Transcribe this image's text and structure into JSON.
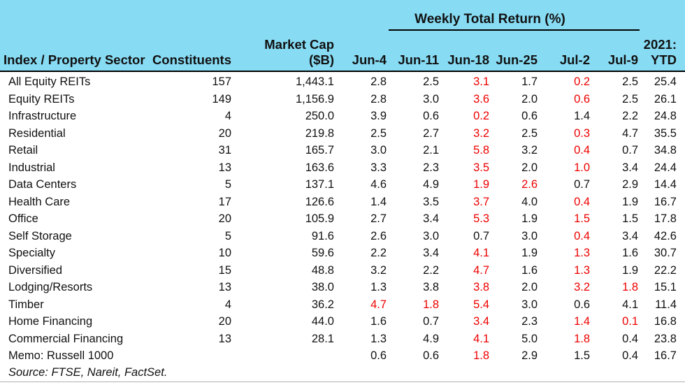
{
  "table": {
    "group_header": {
      "weekly_title": "Weekly Total Return (%)",
      "ytd_line1": "2021:",
      "ytd_line2": "YTD"
    },
    "columns": {
      "sector": "Index / Property Sector",
      "constituents": "Constituents",
      "market_cap_line1": "Market Cap",
      "market_cap_line2": "($B)",
      "weeks": [
        "Jun-4",
        "Jun-11",
        "Jun-18",
        "Jun-25",
        "Jul-2",
        "Jul-9"
      ]
    },
    "rows": [
      {
        "sector": "All Equity REITs",
        "constituents": "157",
        "market_cap": "1,443.1",
        "weekly": [
          "2.8",
          "2.5",
          "3.1",
          "1.7",
          "0.2",
          "2.5"
        ],
        "red_weeks": [
          2,
          4
        ],
        "ytd": "25.4"
      },
      {
        "sector": "Equity REITs",
        "constituents": "149",
        "market_cap": "1,156.9",
        "weekly": [
          "2.8",
          "3.0",
          "3.6",
          "2.0",
          "0.6",
          "2.5"
        ],
        "red_weeks": [
          2,
          4
        ],
        "ytd": "26.1"
      },
      {
        "sector": "Infrastructure",
        "constituents": "4",
        "market_cap": "250.0",
        "weekly": [
          "3.9",
          "0.6",
          "0.2",
          "0.6",
          "1.4",
          "2.2"
        ],
        "red_weeks": [
          2
        ],
        "ytd": "24.8"
      },
      {
        "sector": "Residential",
        "constituents": "20",
        "market_cap": "219.8",
        "weekly": [
          "2.5",
          "2.7",
          "3.2",
          "2.5",
          "0.3",
          "4.7"
        ],
        "red_weeks": [
          2,
          4
        ],
        "ytd": "35.5"
      },
      {
        "sector": "Retail",
        "constituents": "31",
        "market_cap": "165.7",
        "weekly": [
          "3.0",
          "2.1",
          "5.8",
          "3.2",
          "0.4",
          "0.7"
        ],
        "red_weeks": [
          2,
          4
        ],
        "ytd": "34.8"
      },
      {
        "sector": "Industrial",
        "constituents": "13",
        "market_cap": "163.6",
        "weekly": [
          "3.3",
          "2.3",
          "3.5",
          "2.0",
          "1.0",
          "3.4"
        ],
        "red_weeks": [
          2,
          4
        ],
        "ytd": "24.4"
      },
      {
        "sector": "Data Centers",
        "constituents": "5",
        "market_cap": "137.1",
        "weekly": [
          "4.6",
          "4.9",
          "1.9",
          "2.6",
          "0.7",
          "2.9"
        ],
        "red_weeks": [
          2,
          3
        ],
        "ytd": "14.4"
      },
      {
        "sector": "Health Care",
        "constituents": "17",
        "market_cap": "126.6",
        "weekly": [
          "1.4",
          "3.5",
          "3.7",
          "4.0",
          "0.4",
          "1.9"
        ],
        "red_weeks": [
          2,
          4
        ],
        "ytd": "16.7"
      },
      {
        "sector": "Office",
        "constituents": "20",
        "market_cap": "105.9",
        "weekly": [
          "2.7",
          "3.4",
          "5.3",
          "1.9",
          "1.5",
          "1.5"
        ],
        "red_weeks": [
          2,
          4
        ],
        "ytd": "17.8"
      },
      {
        "sector": "Self Storage",
        "constituents": "5",
        "market_cap": "91.6",
        "weekly": [
          "2.6",
          "3.0",
          "0.7",
          "3.0",
          "0.4",
          "3.4"
        ],
        "red_weeks": [
          4
        ],
        "ytd": "42.6"
      },
      {
        "sector": "Specialty",
        "constituents": "10",
        "market_cap": "59.6",
        "weekly": [
          "2.2",
          "3.4",
          "4.1",
          "1.9",
          "1.3",
          "1.6"
        ],
        "red_weeks": [
          2,
          4
        ],
        "ytd": "30.7"
      },
      {
        "sector": "Diversified",
        "constituents": "15",
        "market_cap": "48.8",
        "weekly": [
          "3.2",
          "2.2",
          "4.7",
          "1.6",
          "1.3",
          "1.9"
        ],
        "red_weeks": [
          2,
          4
        ],
        "ytd": "22.2"
      },
      {
        "sector": "Lodging/Resorts",
        "constituents": "13",
        "market_cap": "38.0",
        "weekly": [
          "1.3",
          "3.8",
          "3.8",
          "2.0",
          "3.2",
          "1.8"
        ],
        "red_weeks": [
          2,
          4,
          5
        ],
        "ytd": "15.1"
      },
      {
        "sector": "Timber",
        "constituents": "4",
        "market_cap": "36.2",
        "weekly": [
          "4.7",
          "1.8",
          "5.4",
          "3.0",
          "0.6",
          "4.1"
        ],
        "red_weeks": [
          0,
          1,
          2
        ],
        "ytd": "11.4"
      },
      {
        "sector": "Home Financing",
        "constituents": "20",
        "market_cap": "44.0",
        "weekly": [
          "1.6",
          "0.7",
          "3.4",
          "2.3",
          "1.4",
          "0.1"
        ],
        "red_weeks": [
          2,
          4,
          5
        ],
        "ytd": "16.8"
      },
      {
        "sector": "Commercial Financing",
        "constituents": "13",
        "market_cap": "28.1",
        "weekly": [
          "1.3",
          "4.9",
          "4.1",
          "5.0",
          "1.8",
          "0.4"
        ],
        "red_weeks": [
          2,
          4
        ],
        "ytd": "23.8"
      },
      {
        "sector": "Memo: Russell 1000",
        "constituents": "",
        "market_cap": "",
        "weekly": [
          "0.6",
          "0.6",
          "1.8",
          "2.9",
          "1.5",
          "0.4"
        ],
        "red_weeks": [
          2
        ],
        "ytd": "16.7"
      }
    ],
    "source_note": "Source: FTSE, Nareit, FactSet.",
    "colors": {
      "header_bg": "#87dcf4",
      "negative_red": "#ee0000",
      "text": "#111111",
      "header_divider": "#000000",
      "bottom_divider": "#b0b0b0"
    }
  }
}
